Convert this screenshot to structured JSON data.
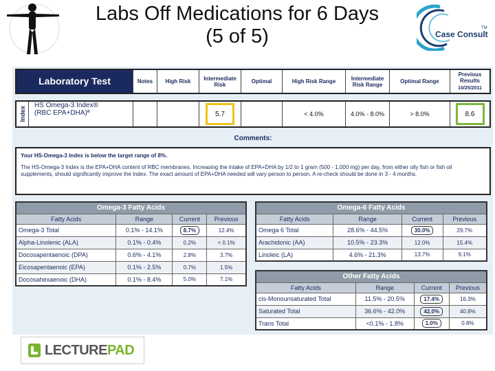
{
  "slide": {
    "title_line1": "Labs Off Medications for 6 Days",
    "title_line2": "(5 of 5)"
  },
  "logos": {
    "case_consult": "Case Consult",
    "case_consult_tm": "TM",
    "lecturepad_a": "LECTURE",
    "lecturepad_b": "PAD"
  },
  "lab_header": {
    "test": "Laboratory Test",
    "notes": "Notes",
    "high_risk": "High Risk",
    "intermediate_risk": "Intermediate Risk",
    "optimal": "Optimal",
    "high_risk_range": "High Risk Range",
    "intermediate_risk_range": "Intermediate Risk Range",
    "optimal_range": "Optimal Range",
    "previous_results": "Previous Results",
    "previous_date": "10/25/2011"
  },
  "index_row": {
    "label": "Index",
    "test_name_1": "HS Omega-3 Index®",
    "test_name_2": "(RBC EPA+DHA)ª",
    "intermediate_value": "5.7",
    "high_risk_range": "< 4.0%",
    "intermediate_range": "4.0% - 8.0%",
    "optimal_range": "> 8.0%",
    "previous": "8.6",
    "colors": {
      "intermediate": "#f2c218",
      "previous": "#7bb93c"
    }
  },
  "comments": {
    "heading": "Comments:",
    "lead": "Your HS-Omega-3 Index is below the target range of 8%.",
    "body": "The HS-Omega-3 Index is the EPA+DHA content of RBC membranes. Increasing the intake of EPA+DHA by 1/2 to 1 gram (500 - 1,000 mg) per day, from either oily fish or fish oil supplements, should significantly improve the index. The exact amount of EPA+DHA needed will vary person to person. A re-check should be done in 3 - 4 months."
  },
  "omega3": {
    "title": "Omega-3 Fatty Acids",
    "headers": [
      "Fatty Acids",
      "Range",
      "Current",
      "Previous"
    ],
    "rows": [
      {
        "name": "Omega-3 Total",
        "range": "0.1% - 14.1%",
        "current": "8.7%",
        "previous": "12.4%",
        "flag": true
      },
      {
        "name": "Alpha-Linolenic (ALA)",
        "range": "0.1% - 0.4%",
        "current": "0.2%",
        "previous": "< 0.1%",
        "flag": false
      },
      {
        "name": "Docosapentaenoic (DPA)",
        "range": "0.6% - 4.1%",
        "current": "2.8%",
        "previous": "3.7%",
        "flag": false
      },
      {
        "name": "Eicosapentaenoic (EPA)",
        "range": "0.1% - 2.5%",
        "current": "0.7%",
        "previous": "1.5%",
        "flag": false
      },
      {
        "name": "Docosahexaenoic (DHA)",
        "range": "0.1% - 8.4%",
        "current": "5.0%",
        "previous": "7.1%",
        "flag": false
      }
    ]
  },
  "omega6": {
    "title": "Omega-6 Fatty Acids",
    "headers": [
      "Fatty Acids",
      "Range",
      "Current",
      "Previous"
    ],
    "rows": [
      {
        "name": "Omega 6 Total",
        "range": "28.6% - 44.5%",
        "current": "30.0%",
        "previous": "29.7%",
        "flag": true
      },
      {
        "name": "Arachidonic (AA)",
        "range": "10.5% - 23.3%",
        "current": "12.0%",
        "previous": "15.4%",
        "flag": false
      },
      {
        "name": "Linoleic (LA)",
        "range": "4.6% - 21.3%",
        "current": "13.7%",
        "previous": "9.1%",
        "flag": false
      }
    ]
  },
  "other": {
    "title": "Other Fatty Acids",
    "headers": [
      "Fatty Acids",
      "Range",
      "Current",
      "Previous"
    ],
    "rows": [
      {
        "name": "cis-Monounsaturated Total",
        "range": "11.5% - 20.5%",
        "current": "17.4%",
        "previous": "16.3%",
        "flag": true
      },
      {
        "name": "Saturated Total",
        "range": "36.6% - 42.0%",
        "current": "42.0%",
        "previous": "40.8%",
        "flag": true
      },
      {
        "name": "Trans Total",
        "range": "<0.1% - 1.8%",
        "current": "1.0%",
        "previous": "0.8%",
        "flag": true
      }
    ]
  }
}
